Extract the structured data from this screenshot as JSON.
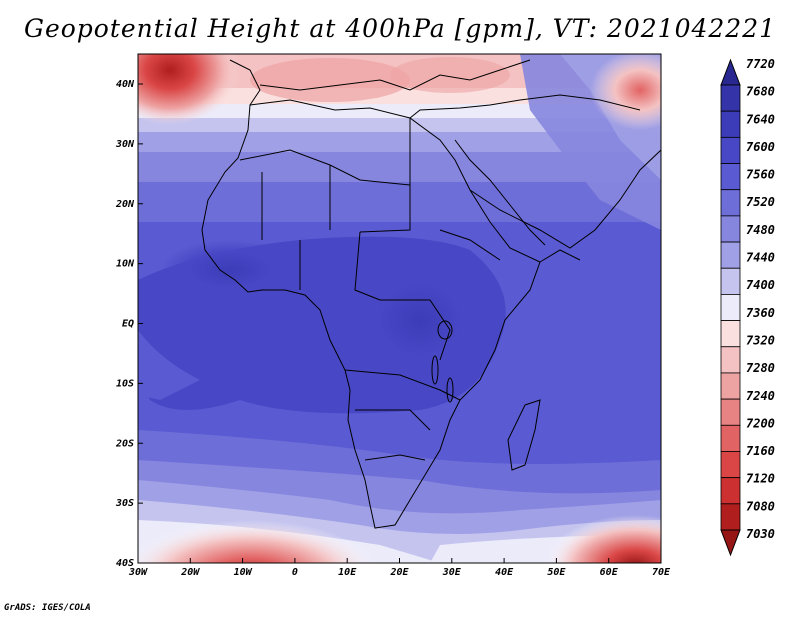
{
  "title": "Geopotential Height at 400hPa [gpm], VT: 2021042221",
  "credit": "GrADS: IGES/COLA",
  "map": {
    "lon_ticks": [
      "30W",
      "20W",
      "10W",
      "0",
      "10E",
      "20E",
      "30E",
      "40E",
      "50E",
      "60E",
      "70E"
    ],
    "lat_ticks": [
      "40N",
      "30N",
      "20N",
      "10N",
      "EQ",
      "10S",
      "20S",
      "30S",
      "40S"
    ]
  },
  "colorbar": {
    "labels": [
      "7720",
      "7680",
      "7640",
      "7600",
      "7560",
      "7520",
      "7480",
      "7440",
      "7400",
      "7360",
      "7320",
      "7280",
      "7240",
      "7200",
      "7160",
      "7120",
      "7080",
      "7030"
    ],
    "colors": [
      "#282890",
      "#3434a8",
      "#3c3cb8",
      "#4848c6",
      "#5a5ad2",
      "#6e6ed9",
      "#8686df",
      "#a0a0e6",
      "#c4c4ef",
      "#ebebfa",
      "#fbe0e0",
      "#f4c2c2",
      "#eea3a3",
      "#e88383",
      "#e26363",
      "#da4646",
      "#cc3030",
      "#b01e1e",
      "#961515"
    ]
  }
}
